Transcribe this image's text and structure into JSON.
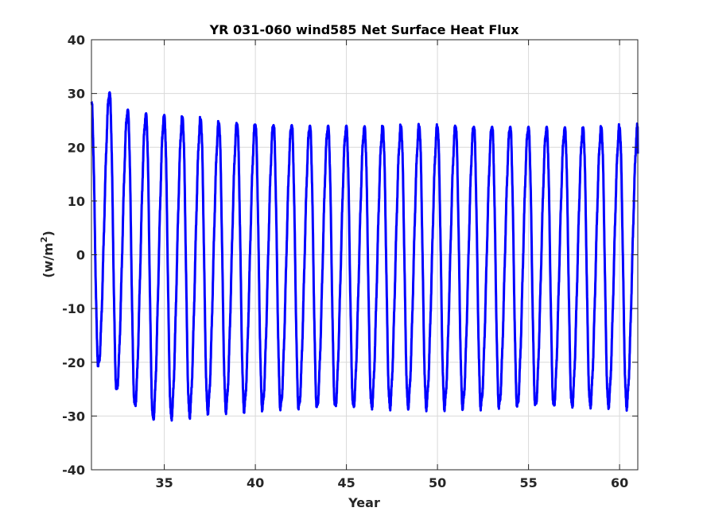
{
  "chart_data": {
    "type": "line",
    "title": "YR 031-060 wind585 Net Surface Heat Flux",
    "xlabel": "Year",
    "ylabel": "(w/m",
    "ylabel_superscript": "2",
    "ylabel_suffix": ")",
    "xlim": [
      31,
      61
    ],
    "ylim": [
      -40,
      40
    ],
    "xticks": [
      35,
      40,
      45,
      50,
      55,
      60
    ],
    "yticks": [
      -40,
      -30,
      -20,
      -10,
      0,
      10,
      20,
      30,
      40
    ],
    "xtick_labels": [
      "35",
      "40",
      "45",
      "50",
      "55",
      "60"
    ],
    "ytick_labels": [
      "-40",
      "-30",
      "-20",
      "-10",
      "0",
      "10",
      "20",
      "30",
      "40"
    ],
    "grid": true,
    "series_color": "#0000ff",
    "series": [
      {
        "start_year": 31.0,
        "start_value": 28.5,
        "cycles": [
          {
            "max": 28.5,
            "min": -20.5
          },
          {
            "max": 30.2,
            "min": -25.0
          },
          {
            "max": 27.0,
            "min": -28.0
          },
          {
            "max": 26.3,
            "min": -30.5
          },
          {
            "max": 26.0,
            "min": -30.2
          },
          {
            "max": 25.6,
            "min": -29.7
          },
          {
            "max": 25.2,
            "min": -29.0
          },
          {
            "max": 24.5,
            "min": -28.7
          },
          {
            "max": 24.3,
            "min": -28.5
          },
          {
            "max": 24.2,
            "min": -28.3
          },
          {
            "max": 24.1,
            "min": -28.3
          },
          {
            "max": 24.1,
            "min": -28.3
          },
          {
            "max": 24.0,
            "min": -28.2
          },
          {
            "max": 24.0,
            "min": -28.2
          },
          {
            "max": 24.0,
            "min": -28.2
          },
          {
            "max": 23.9,
            "min": -28.2
          },
          {
            "max": 23.9,
            "min": -28.2
          },
          {
            "max": 23.9,
            "min": -28.1
          },
          {
            "max": 23.9,
            "min": -28.1
          },
          {
            "max": 23.8,
            "min": -28.1
          },
          {
            "max": 23.8,
            "min": -28.1
          },
          {
            "max": 23.8,
            "min": -28.1
          },
          {
            "max": 23.8,
            "min": -28.0
          },
          {
            "max": 23.8,
            "min": -28.0
          },
          {
            "max": 23.8,
            "min": -28.0
          },
          {
            "max": 23.8,
            "min": -28.0
          },
          {
            "max": 23.7,
            "min": -28.0
          },
          {
            "max": 23.7,
            "min": -28.0
          },
          {
            "max": 23.7,
            "min": -28.0
          },
          {
            "max": 23.7,
            "min": -28.0
          }
        ],
        "end_value": 18.8
      }
    ]
  }
}
